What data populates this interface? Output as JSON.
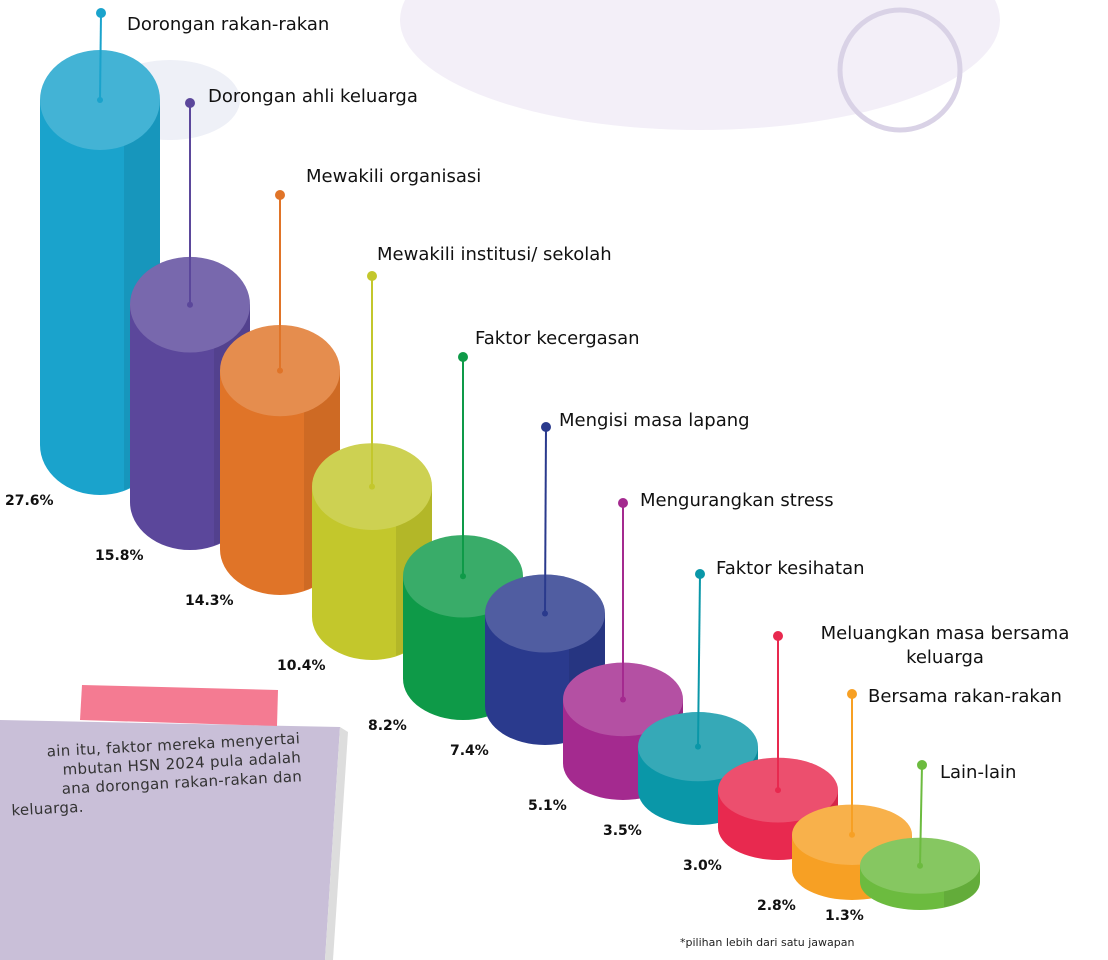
{
  "chart_data": {
    "type": "cylinder",
    "categories": [
      "Dorongan rakan-rakan",
      "Dorongan ahli keluarga",
      "Mewakili organisasi",
      "Mewakili institusi/ sekolah",
      "Faktor kecergasan",
      "Mengisi masa lapang",
      "Mengurangkan  stress",
      "Faktor kesihatan",
      "Meluangkan masa bersama keluarga",
      "Bersama rakan-rakan",
      "Lain-lain"
    ],
    "values": [
      27.6,
      15.8,
      14.3,
      10.4,
      8.2,
      7.4,
      5.1,
      3.5,
      3.0,
      2.8,
      1.3
    ],
    "value_labels": [
      "27.6%",
      "15.8%",
      "14.3%",
      "10.4%",
      "8.2%",
      "7.4%",
      "5.1%",
      "3.5%",
      "3.0%",
      "2.8%",
      "1.3%"
    ],
    "colors": [
      "#1aa3cc",
      "#5b479b",
      "#e07428",
      "#c3c72c",
      "#0e9a48",
      "#2a3a8d",
      "#a42a8f",
      "#0a97a8",
      "#e8294f",
      "#f7a024",
      "#6cbb3f"
    ],
    "footnote": "*pilihan lebih dari satu jawapan"
  },
  "note": {
    "lines": [
      "ain itu, faktor mereka menyertai",
      "mbutan HSN 2024 pula adalah",
      "ana dorongan rakan-rakan dan",
      "keluarga."
    ]
  }
}
